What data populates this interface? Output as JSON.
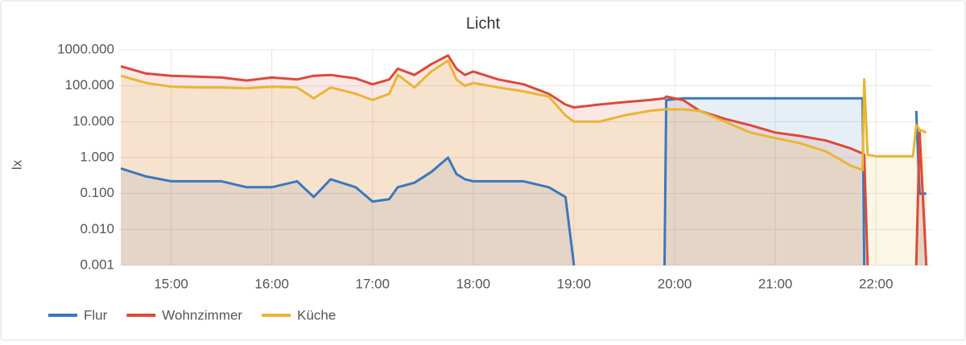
{
  "chart_data": {
    "type": "line",
    "title": "Licht",
    "y_label": "lx",
    "log_scale": true,
    "grid": true,
    "fill": true,
    "x": [
      "14:30",
      "14:45",
      "15:00",
      "15:15",
      "15:30",
      "15:45",
      "16:00",
      "16:15",
      "16:25",
      "16:35",
      "16:50",
      "17:00",
      "17:10",
      "17:15",
      "17:25",
      "17:35",
      "17:45",
      "17:50",
      "17:55",
      "18:00",
      "18:15",
      "18:30",
      "18:45",
      "18:55",
      "19:00",
      "19:15",
      "19:30",
      "19:45",
      "19:54",
      "19:55",
      "20:05",
      "20:15",
      "20:30",
      "20:45",
      "21:00",
      "21:15",
      "21:30",
      "21:45",
      "21:52",
      "21:53",
      "21:55",
      "22:00",
      "22:15",
      "22:22",
      "22:24",
      "22:26",
      "22:30"
    ],
    "xlim": [
      "14:29",
      "22:33"
    ],
    "xticks": [
      "15:00",
      "16:00",
      "17:00",
      "18:00",
      "19:00",
      "20:00",
      "21:00",
      "22:00"
    ],
    "ylim": [
      0.001,
      1000
    ],
    "yticks": [
      {
        "value": 0.001,
        "label": "0.001"
      },
      {
        "value": 0.01,
        "label": "0.010"
      },
      {
        "value": 0.1,
        "label": "0.100"
      },
      {
        "value": 1,
        "label": "1.000"
      },
      {
        "value": 10,
        "label": "10.000"
      },
      {
        "value": 100,
        "label": "100.000"
      },
      {
        "value": 1000,
        "label": "1000.000"
      }
    ],
    "series": [
      {
        "name": "Flur",
        "color": "#3a78bd",
        "values": [
          0.5,
          0.3,
          0.22,
          0.22,
          0.22,
          0.15,
          0.15,
          0.22,
          0.08,
          0.25,
          0.15,
          0.06,
          0.07,
          0.15,
          0.2,
          0.4,
          1.0,
          0.35,
          0.25,
          0.22,
          0.22,
          0.22,
          0.15,
          0.08,
          0.001,
          null,
          null,
          null,
          0.001,
          40,
          45,
          45,
          45,
          45,
          45,
          45,
          45,
          45,
          45,
          0.001,
          null,
          null,
          null,
          null,
          20,
          0.1,
          0.1
        ]
      },
      {
        "name": "Wohnzimmer",
        "color": "#db4a3a",
        "values": [
          350,
          220,
          190,
          180,
          170,
          140,
          170,
          150,
          190,
          200,
          160,
          110,
          150,
          300,
          200,
          400,
          700,
          300,
          200,
          250,
          150,
          110,
          60,
          30,
          25,
          30,
          35,
          40,
          45,
          50,
          40,
          20,
          12,
          8,
          5,
          4,
          3,
          1.8,
          1.3,
          1.2,
          0.001,
          null,
          null,
          null,
          0.001,
          5,
          0.001
        ]
      },
      {
        "name": "Küche",
        "color": "#e9b632",
        "values": [
          190,
          120,
          95,
          90,
          90,
          85,
          95,
          90,
          45,
          90,
          60,
          40,
          60,
          200,
          90,
          250,
          500,
          150,
          100,
          120,
          90,
          70,
          50,
          15,
          10,
          10,
          15,
          20,
          22,
          22,
          22,
          20,
          10,
          5,
          3.5,
          2.5,
          1.5,
          0.6,
          0.45,
          150,
          1.2,
          1.1,
          1.1,
          1.1,
          8,
          6,
          5
        ]
      }
    ]
  }
}
